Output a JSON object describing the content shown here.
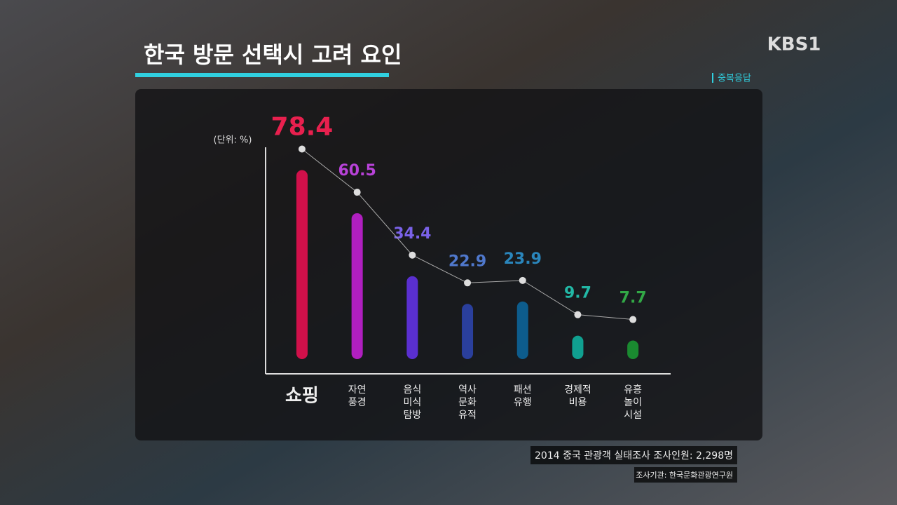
{
  "logo": "KBS1",
  "chart_data": {
    "type": "bar",
    "title": "한국 방문 선택시 고려 요인",
    "note": "중복응답",
    "unit_label": "(단위: %)",
    "categories": [
      [
        "쇼핑"
      ],
      [
        "자연",
        "풍경"
      ],
      [
        "음식",
        "미식",
        "탐방"
      ],
      [
        "역사",
        "문화",
        "유적"
      ],
      [
        "패션",
        "유행"
      ],
      [
        "경제적",
        "비용"
      ],
      [
        "유흥",
        "놀이",
        "시설"
      ]
    ],
    "values": [
      78.4,
      60.5,
      34.4,
      22.9,
      23.9,
      9.7,
      7.7
    ],
    "colors": [
      "#d0104a",
      "#b01fc0",
      "#5a2fd0",
      "#2a3f9c",
      "#0d5c8c",
      "#10a090",
      "#1a8a30"
    ],
    "label_colors": [
      "#e8204e",
      "#b842d8",
      "#7a62e8",
      "#4f78cc",
      "#2a86bc",
      "#22b8a6",
      "#32a846"
    ],
    "ylim": [
      0,
      80
    ],
    "source": "2014 중국 관광객 실태조사  조사인원: 2,298명",
    "agency": "조사기관: 한국문화관광연구원"
  }
}
